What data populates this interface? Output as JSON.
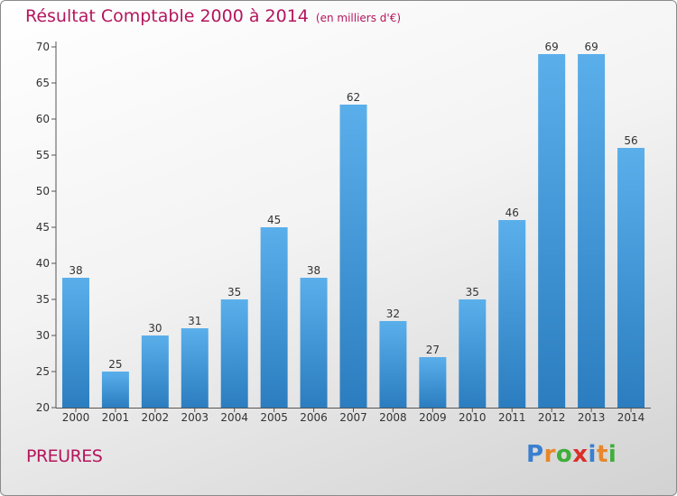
{
  "title": "Résultat Comptable 2000 à 2014",
  "title_unit": "(en milliers d'€)",
  "commune": "PREURES",
  "logo": {
    "letters": [
      "P",
      "r",
      "o",
      "x",
      "i",
      "t",
      "i"
    ],
    "colors": [
      "#3a7fd0",
      "#e8862a",
      "#3fae3a",
      "#d9302a",
      "#3a7fd0",
      "#e8862a",
      "#3fae3a"
    ]
  },
  "colors": {
    "bar_light": "#5aafeb",
    "bar_dark": "#2b7dbf",
    "title": "#b5155d"
  },
  "chart_data": {
    "type": "bar",
    "title": "Résultat Comptable 2000 à 2014",
    "categories": [
      "2000",
      "2001",
      "2002",
      "2003",
      "2004",
      "2005",
      "2006",
      "2007",
      "2008",
      "2009",
      "2010",
      "2011",
      "2012",
      "2013",
      "2014"
    ],
    "values": [
      38,
      25,
      30,
      31,
      35,
      45,
      38,
      62,
      32,
      27,
      35,
      46,
      69,
      69,
      56
    ],
    "ylim": [
      20,
      70
    ],
    "yticks": [
      20,
      25,
      30,
      35,
      40,
      45,
      50,
      55,
      60,
      65,
      70
    ],
    "grid": false,
    "xlabel": "",
    "ylabel": ""
  }
}
